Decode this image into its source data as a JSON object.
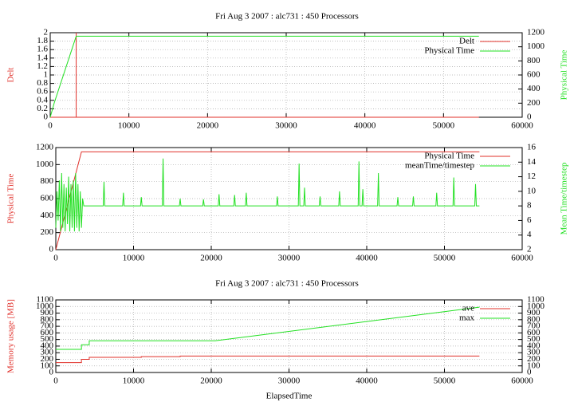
{
  "chart_data": [
    {
      "type": "line",
      "title": "Fri Aug 3 2007 : alc731 : 450 Processors",
      "ylabel": "Delt",
      "y2label": "Physical Time",
      "xlim": [
        0,
        60000
      ],
      "xticks": [
        0,
        10000,
        20000,
        30000,
        40000,
        50000,
        60000
      ],
      "ylim": [
        0,
        2
      ],
      "yticks": [
        0,
        0.2,
        0.4,
        0.6,
        0.8,
        1,
        1.2,
        1.4,
        1.6,
        1.8,
        2
      ],
      "y2lim": [
        0,
        1200
      ],
      "y2ticks": [
        0,
        200,
        400,
        600,
        800,
        1000,
        1200
      ],
      "grid": true,
      "legend": "upper right",
      "series": [
        {
          "name": "Delt",
          "color": "#e0302a",
          "x": [
            0,
            3300,
            3300,
            3300,
            54500
          ],
          "values": [
            0,
            0,
            2,
            0,
            0
          ]
        },
        {
          "name": "Physical Time",
          "color": "#22e022",
          "axis": "y2",
          "x": [
            0,
            500,
            3300,
            54500
          ],
          "values": [
            0,
            200,
            1150,
            1150
          ]
        }
      ]
    },
    {
      "type": "line",
      "ylabel": "Physical Time",
      "y2label": "Mean Time/timestep",
      "xlim": [
        0,
        60000
      ],
      "xticks": [
        0,
        10000,
        20000,
        30000,
        40000,
        50000,
        60000
      ],
      "ylim": [
        0,
        1200
      ],
      "yticks": [
        0,
        200,
        400,
        600,
        800,
        1000,
        1200
      ],
      "y2lim": [
        2,
        16
      ],
      "y2ticks": [
        2,
        4,
        6,
        8,
        10,
        12,
        14,
        16
      ],
      "grid": true,
      "legend": "upper right",
      "series": [
        {
          "name": "Physical Time",
          "color": "#e0302a",
          "x": [
            0,
            3300,
            54500
          ],
          "values": [
            0,
            1150,
            1150
          ]
        },
        {
          "name": "meanTime/timestep",
          "color": "#22e022",
          "axis": "y2",
          "x": [
            0,
            150,
            300,
            450,
            600,
            750,
            900,
            1050,
            1200,
            1350,
            1500,
            1650,
            1800,
            1950,
            2100,
            2250,
            2400,
            2550,
            2700,
            2850,
            3000,
            3150,
            3300,
            3450,
            3600,
            6100,
            6200,
            6300,
            8600,
            8700,
            8800,
            10900,
            11000,
            11100,
            13700,
            13800,
            13900,
            15900,
            16000,
            16100,
            18900,
            19000,
            19100,
            20900,
            21000,
            21100,
            22900,
            23000,
            23100,
            24400,
            24500,
            24600,
            28400,
            28500,
            28600,
            31200,
            31300,
            31400,
            31900,
            32000,
            32100,
            33900,
            34000,
            34100,
            36400,
            36500,
            36600,
            38900,
            39000,
            39100,
            39400,
            39500,
            39600,
            41400,
            41500,
            41600,
            43900,
            44000,
            44100,
            45900,
            46000,
            46100,
            48900,
            49000,
            49100,
            51100,
            51200,
            51300,
            53900,
            54000,
            54100,
            54500
          ],
          "values": [
            5,
            10,
            6,
            11.5,
            4.5,
            12.5,
            5,
            11,
            4.5,
            10.5,
            5.5,
            12,
            4.5,
            11,
            5,
            11.5,
            4.5,
            12.5,
            5,
            11,
            4.5,
            10,
            5,
            9,
            8,
            8,
            11.3,
            8,
            8,
            9.8,
            8,
            8,
            9.2,
            8,
            8,
            14.5,
            8,
            8,
            9,
            8,
            8,
            8.9,
            8,
            8,
            9.6,
            8,
            8,
            9.5,
            8,
            8,
            9.8,
            8,
            8,
            9.3,
            8,
            8,
            13.8,
            8,
            8,
            10.5,
            8,
            8,
            9.3,
            8,
            8,
            10,
            8,
            8,
            14.1,
            8,
            8,
            10.3,
            8,
            8,
            12.5,
            8,
            8,
            9.2,
            8,
            8,
            9.3,
            8,
            8,
            9.8,
            8,
            8,
            11.9,
            8,
            8,
            11,
            8,
            8
          ]
        }
      ]
    },
    {
      "type": "line",
      "title": "Fri Aug 3 2007 : alc731 : 450 Processors",
      "ylabel": "Memory usage [MB]",
      "xlabel": "ElapsedTime",
      "xlim": [
        0,
        60000
      ],
      "xticks": [
        0,
        10000,
        20000,
        30000,
        40000,
        50000,
        60000
      ],
      "ylim": [
        0,
        1100
      ],
      "yticks": [
        0,
        100,
        200,
        300,
        400,
        500,
        600,
        700,
        800,
        900,
        1000,
        1100
      ],
      "y2lim": [
        0,
        1100
      ],
      "y2ticks": [
        0,
        100,
        200,
        300,
        400,
        500,
        600,
        700,
        800,
        900,
        1000,
        1100
      ],
      "grid": true,
      "legend": "upper right",
      "series": [
        {
          "name": "ave",
          "color": "#e0302a",
          "x": [
            0,
            3300,
            3300,
            4300,
            4300,
            11000,
            11000,
            16000,
            16000,
            54500
          ],
          "values": [
            150,
            150,
            200,
            200,
            230,
            230,
            240,
            240,
            250,
            250
          ]
        },
        {
          "name": "max",
          "color": "#22e022",
          "x": [
            0,
            3300,
            3300,
            4300,
            4300,
            20500,
            54500
          ],
          "values": [
            350,
            350,
            420,
            420,
            480,
            480,
            990
          ]
        }
      ]
    }
  ]
}
